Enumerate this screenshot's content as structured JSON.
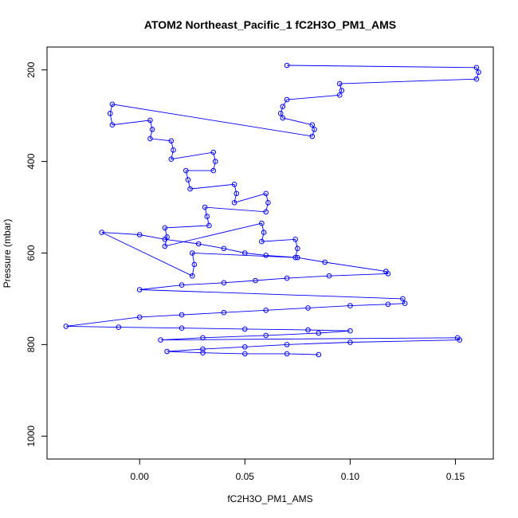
{
  "chart_data": {
    "type": "scatter",
    "title": "ATOM2 Northeast_Pacific_1 fC2H3O_PM1_AMS",
    "xlabel": "fC2H3O_PM1_AMS",
    "ylabel": "Pressure (mbar)",
    "xlim": [
      -0.044,
      0.168
    ],
    "ylim": [
      1050,
      150
    ],
    "y_reversed": true,
    "x_ticks": [
      0.0,
      0.05,
      0.1,
      0.15
    ],
    "x_tick_labels": [
      "0.00",
      "0.05",
      "0.10",
      "0.15"
    ],
    "y_ticks": [
      200,
      400,
      600,
      800,
      1000
    ],
    "y_tick_labels": [
      "200",
      "400",
      "600",
      "800",
      "1000"
    ],
    "grid": false,
    "legend": "none",
    "color": "#0000ff",
    "series": [
      {
        "mode": "lines+markers",
        "x": [
          0.07,
          0.16,
          0.161,
          0.16,
          0.095,
          0.096,
          0.095,
          0.07,
          0.068,
          0.067,
          0.068,
          0.082,
          0.083,
          0.082,
          -0.013,
          -0.014,
          -0.013,
          0.005,
          0.006,
          0.005,
          0.015,
          0.016,
          0.015,
          0.035,
          0.036,
          0.035,
          0.022,
          0.023,
          0.024,
          0.045,
          0.046,
          0.045,
          0.06,
          0.061,
          0.06,
          0.031,
          0.032,
          0.033,
          0.012,
          0.013,
          0.012,
          0.058,
          0.059,
          0.058,
          0.074,
          0.075,
          0.074,
          0.025,
          0.026,
          0.025,
          -0.018,
          0.0,
          0.012,
          0.028,
          0.04,
          0.05,
          0.06,
          0.075,
          0.088,
          0.117,
          0.118,
          0.09,
          0.07,
          0.055,
          0.04,
          0.02,
          0.0,
          0.125,
          0.126,
          0.118,
          0.1,
          0.08,
          0.06,
          0.04,
          0.02,
          0.0,
          -0.035,
          -0.01,
          0.02,
          0.05,
          0.08,
          0.1,
          0.085,
          0.06,
          0.03,
          0.01,
          0.151,
          0.152,
          0.1,
          0.07,
          0.05,
          0.03,
          0.013,
          0.03,
          0.05,
          0.07,
          0.085
        ],
        "y": [
          190,
          195,
          205,
          220,
          230,
          245,
          255,
          265,
          280,
          295,
          305,
          320,
          330,
          345,
          275,
          295,
          320,
          310,
          330,
          350,
          355,
          375,
          395,
          380,
          400,
          420,
          420,
          440,
          460,
          450,
          470,
          490,
          470,
          490,
          510,
          500,
          520,
          540,
          545,
          565,
          585,
          535,
          555,
          575,
          570,
          590,
          610,
          600,
          625,
          650,
          555,
          560,
          570,
          580,
          590,
          600,
          605,
          610,
          620,
          640,
          645,
          650,
          655,
          660,
          665,
          670,
          680,
          700,
          710,
          712,
          715,
          720,
          725,
          730,
          735,
          740,
          760,
          762,
          764,
          766,
          768,
          770,
          775,
          780,
          785,
          790,
          785,
          790,
          795,
          800,
          805,
          810,
          815,
          818,
          820,
          820,
          822
        ]
      }
    ]
  }
}
